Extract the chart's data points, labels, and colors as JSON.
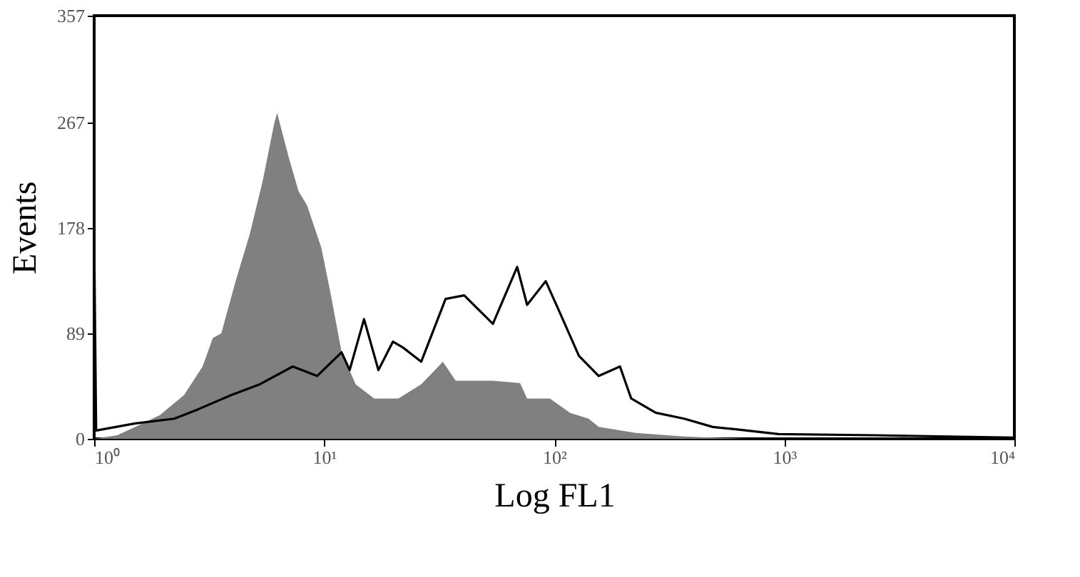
{
  "chart_data": {
    "type": "area",
    "xlabel": "Log FL1",
    "ylabel": "Events",
    "log": "x",
    "xlim": [
      1,
      10000
    ],
    "xticks": [
      {
        "value": 1,
        "label": "10⁰"
      },
      {
        "value": 10,
        "label": "10¹"
      },
      {
        "value": 100,
        "label": "10²"
      },
      {
        "value": 1000,
        "label": "10³"
      },
      {
        "value": 10000,
        "label": "10⁴"
      }
    ],
    "ylim": [
      0,
      357
    ],
    "yticks": [
      0,
      89,
      178,
      267,
      357
    ],
    "grid": false,
    "series": [
      {
        "type": "area",
        "color": "#808080",
        "x": [
          1,
          1.26,
          1.51,
          1.93,
          2.46,
          2.96,
          3.28,
          3.57,
          4.12,
          4.75,
          5.41,
          6.06,
          6.24,
          7.0,
          7.73,
          8.42,
          9.72,
          10.7,
          11.9,
          13.7,
          16.5,
          21.0,
          26.4,
          32.8,
          37.3,
          54.1,
          71.0,
          76.2,
          95.8,
          117,
          141,
          156,
          226,
          367,
          679,
          10000
        ],
        "values": [
          0,
          3,
          10,
          20,
          37,
          61,
          85,
          89,
          133,
          173,
          218,
          266,
          275,
          238,
          209,
          197,
          161,
          121,
          73,
          46,
          34,
          34,
          46,
          65,
          49,
          49,
          47,
          34,
          34,
          22,
          17,
          10,
          5,
          2,
          0,
          0
        ]
      },
      {
        "type": "line",
        "color": "#000000",
        "x": [
          1,
          1.02,
          1.51,
          2.23,
          2.84,
          3.95,
          5.25,
          7.3,
          9.31,
          11.9,
          12.9,
          14.9,
          17.2,
          19.9,
          22.0,
          26.4,
          33.7,
          40.6,
          54.1,
          69.0,
          76.2,
          91.8,
          106,
          128,
          156,
          193,
          216,
          276,
          367,
          489,
          615,
          944,
          2460,
          10000
        ],
        "values": [
          170,
          7,
          13,
          17,
          25,
          37,
          46,
          61,
          53,
          73,
          58,
          101,
          58,
          82,
          77,
          65,
          118,
          121,
          97,
          145,
          113,
          133,
          106,
          70,
          53,
          61,
          34,
          22,
          17,
          10,
          8,
          4,
          3,
          1
        ]
      }
    ]
  }
}
